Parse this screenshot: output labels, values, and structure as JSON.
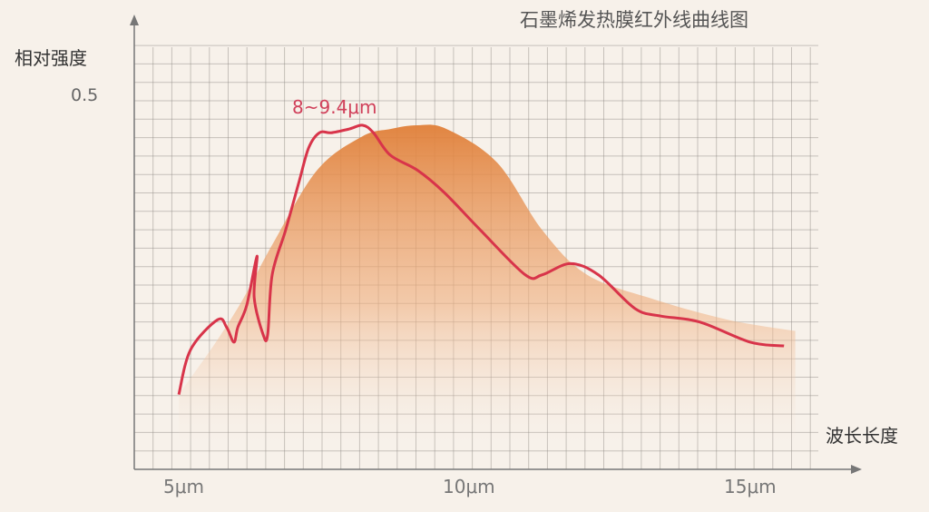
{
  "chart_data": {
    "type": "line",
    "title": "石墨烯发热膜红外线曲线图",
    "ylabel": "相对强度",
    "xlabel": "波长长度",
    "y_ticks": [
      "0.5"
    ],
    "x_ticks": [
      {
        "value": 5,
        "label": "5μm"
      },
      {
        "value": 10,
        "label": "10μm"
      },
      {
        "value": 15,
        "label": "15μm"
      }
    ],
    "xlim": [
      4.0,
      16.2
    ],
    "ylim": [
      0,
      0.5
    ],
    "grid": true,
    "annotation": "8~9.4μm",
    "colors": {
      "line": "#d8344a",
      "area": "#e58a45",
      "grid": "#8a8580"
    },
    "series": [
      {
        "type": "line",
        "x": [
          4.84,
          5.05,
          5.53,
          5.69,
          5.82,
          5.89,
          6.05,
          6.23,
          6.18,
          6.34,
          6.42,
          6.5,
          6.74,
          6.98,
          7.15,
          7.34,
          7.55,
          7.87,
          8.11,
          8.3,
          8.6,
          9.08,
          9.56,
          10.2,
          11.0,
          11.3,
          11.8,
          12.3,
          12.95,
          13.4,
          14.1,
          15.0,
          15.6
        ],
        "y": [
          0.1,
          0.16,
          0.2,
          0.19,
          0.17,
          0.19,
          0.22,
          0.285,
          0.23,
          0.18,
          0.18,
          0.26,
          0.32,
          0.385,
          0.43,
          0.45,
          0.45,
          0.455,
          0.46,
          0.45,
          0.42,
          0.4,
          0.37,
          0.32,
          0.26,
          0.26,
          0.275,
          0.26,
          0.215,
          0.205,
          0.197,
          0.17,
          0.165
        ]
      },
      {
        "type": "area",
        "x": [
          4.84,
          5.5,
          6.0,
          6.5,
          7.3,
          8.1,
          8.6,
          9.08,
          9.6,
          10.5,
          11.3,
          12.1,
          13.3,
          14.6,
          15.8
        ],
        "y": [
          0.1,
          0.17,
          0.23,
          0.3,
          0.4,
          0.445,
          0.455,
          0.46,
          0.455,
          0.41,
          0.32,
          0.26,
          0.227,
          0.2,
          0.185
        ]
      }
    ]
  }
}
